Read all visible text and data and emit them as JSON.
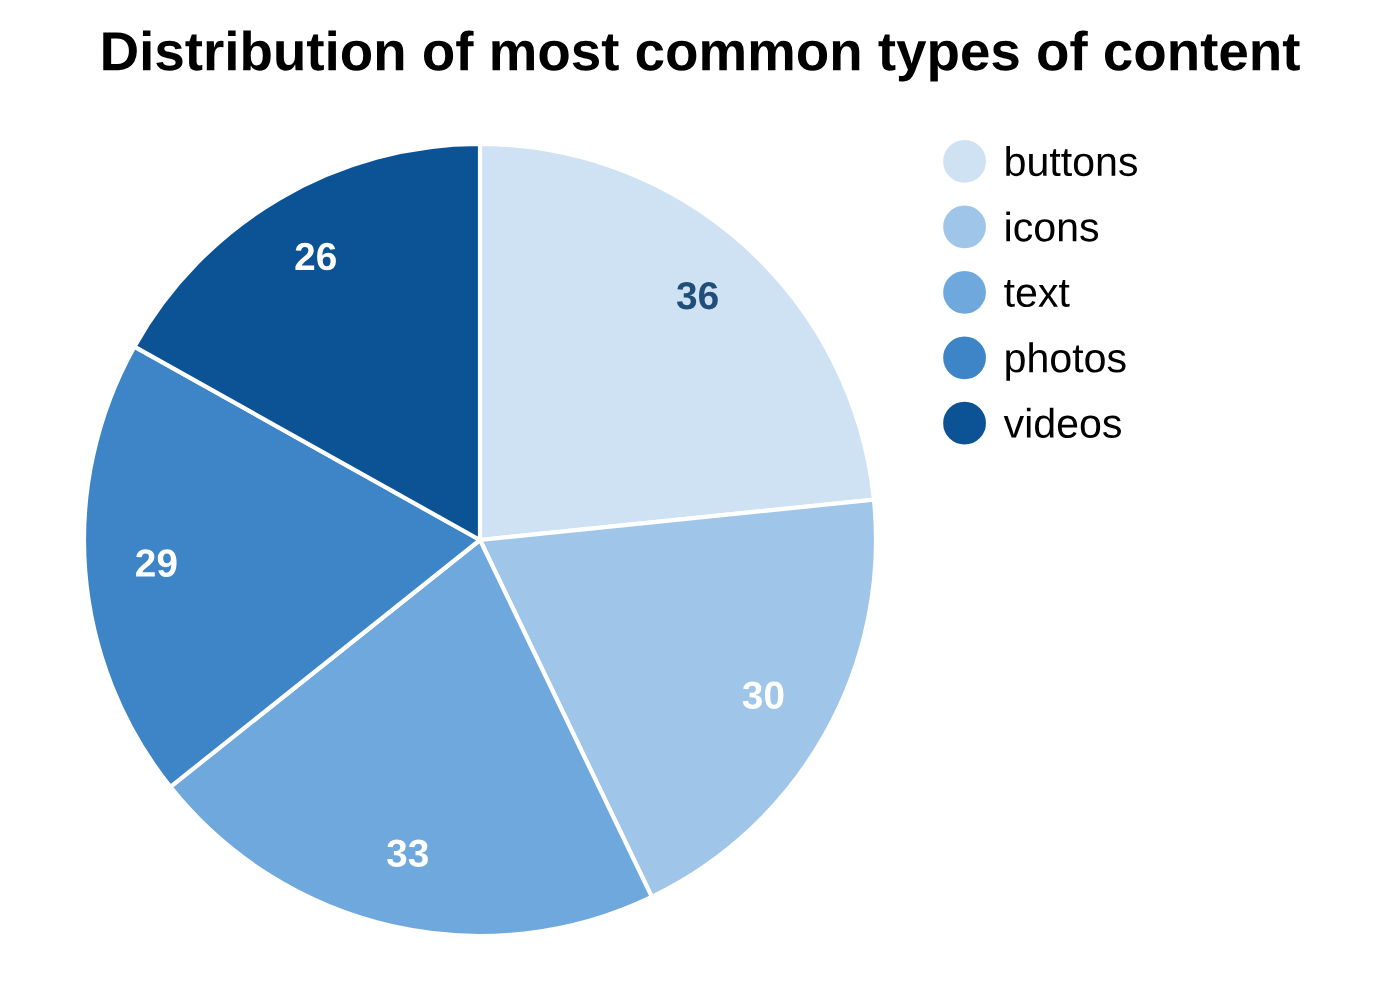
{
  "chart_data": {
    "type": "pie",
    "title": "Distribution of most common types of content",
    "categories": [
      "buttons",
      "icons",
      "text",
      "photos",
      "videos"
    ],
    "values": [
      36,
      30,
      33,
      29,
      26
    ],
    "colors": [
      "#cfe2f3",
      "#9fc5e8",
      "#6fa8dc",
      "#3d85c6",
      "#0b5394"
    ],
    "data_labels": true,
    "legend": "top right"
  }
}
